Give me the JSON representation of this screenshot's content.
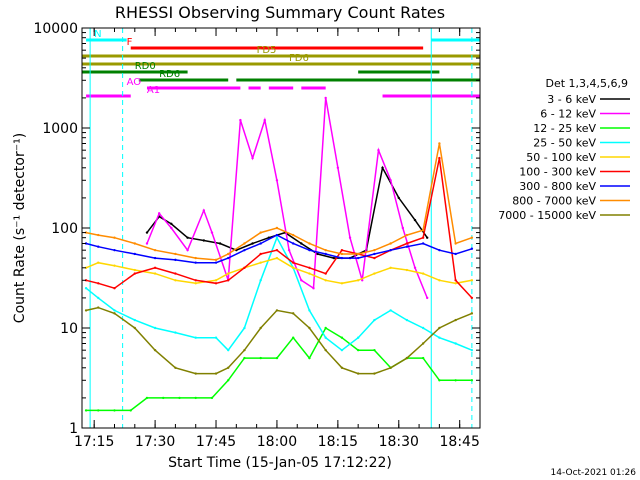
{
  "chart_data": {
    "type": "line",
    "title": "RHESSI Observing Summary Count Rates",
    "xlabel": "Start Time (15-Jan-05 17:12:22)",
    "ylabel": "Count Rate (s⁻¹ detector⁻¹)",
    "y_scale": "log",
    "ylim": [
      1,
      10000
    ],
    "xlim": [
      "17:12",
      "18:50"
    ],
    "x_ticks": [
      "17:15",
      "17:30",
      "17:45",
      "18:00",
      "18:15",
      "18:30",
      "18:45"
    ],
    "y_ticks": [
      "1",
      "10",
      "100",
      "1000",
      "10000"
    ],
    "footer": "14-Oct-2021 01:26",
    "legend": {
      "title": "Det 1,3,4,5,6,9",
      "placement": "right"
    },
    "series": [
      {
        "name": "3 - 6 keV",
        "color": "#000000",
        "x": [
          "17:28",
          "17:31",
          "17:34",
          "17:38",
          "17:42",
          "17:46",
          "17:50",
          "17:54",
          "17:58",
          "18:02",
          "18:06",
          "18:10",
          "18:14",
          "18:18",
          "18:22",
          "18:26",
          "18:30",
          "18:34",
          "18:37"
        ],
        "values": [
          90,
          130,
          110,
          80,
          75,
          70,
          60,
          70,
          80,
          90,
          70,
          55,
          50,
          50,
          60,
          400,
          200,
          120,
          80
        ]
      },
      {
        "name": "6 - 12 keV",
        "color": "#ff00ff",
        "x": [
          "17:28",
          "17:31",
          "17:34",
          "17:38",
          "17:42",
          "17:44",
          "17:48",
          "17:51",
          "17:54",
          "17:57",
          "18:00",
          "18:03",
          "18:06",
          "18:09",
          "18:12",
          "18:15",
          "18:18",
          "18:21",
          "18:25",
          "18:28",
          "18:31",
          "18:34",
          "18:37"
        ],
        "values": [
          70,
          140,
          100,
          60,
          150,
          90,
          30,
          1200,
          500,
          1200,
          300,
          60,
          30,
          25,
          2000,
          400,
          80,
          30,
          600,
          300,
          100,
          40,
          20
        ]
      },
      {
        "name": "12 - 25 keV",
        "color": "#00ff00",
        "x": [
          "17:13",
          "17:16",
          "17:20",
          "17:24",
          "17:28",
          "17:32",
          "17:36",
          "17:40",
          "17:44",
          "17:48",
          "17:52",
          "17:56",
          "18:00",
          "18:04",
          "18:08",
          "18:12",
          "18:16",
          "18:20",
          "18:24",
          "18:28",
          "18:32",
          "18:36",
          "18:40",
          "18:44",
          "18:48"
        ],
        "values": [
          1.5,
          1.5,
          1.5,
          1.5,
          2,
          2,
          2,
          2,
          2,
          3,
          5,
          5,
          5,
          8,
          5,
          10,
          8,
          6,
          6,
          4,
          5,
          5,
          3,
          3,
          3
        ]
      },
      {
        "name": "25 - 50 keV",
        "color": "#00ffff",
        "x": [
          "17:13",
          "17:16",
          "17:20",
          "17:25",
          "17:30",
          "17:35",
          "17:40",
          "17:45",
          "17:48",
          "17:52",
          "17:56",
          "18:00",
          "18:04",
          "18:08",
          "18:12",
          "18:16",
          "18:20",
          "18:24",
          "18:28",
          "18:32",
          "18:36",
          "18:40",
          "18:44",
          "18:48"
        ],
        "values": [
          25,
          20,
          15,
          12,
          10,
          9,
          8,
          8,
          6,
          10,
          30,
          80,
          40,
          15,
          8,
          6,
          8,
          12,
          15,
          12,
          10,
          8,
          7,
          6
        ]
      },
      {
        "name": "50 - 100 keV",
        "color": "#ffd700",
        "x": [
          "17:13",
          "17:16",
          "17:20",
          "17:25",
          "17:30",
          "17:35",
          "17:40",
          "17:45",
          "17:48",
          "17:52",
          "17:56",
          "18:00",
          "18:04",
          "18:08",
          "18:12",
          "18:16",
          "18:20",
          "18:24",
          "18:28",
          "18:32",
          "18:36",
          "18:40",
          "18:44",
          "18:48"
        ],
        "values": [
          40,
          45,
          42,
          38,
          35,
          30,
          28,
          30,
          35,
          40,
          45,
          50,
          40,
          35,
          30,
          28,
          30,
          35,
          40,
          38,
          35,
          30,
          28,
          30
        ]
      },
      {
        "name": "100 - 300 keV",
        "color": "#ff0000",
        "x": [
          "17:13",
          "17:16",
          "17:20",
          "17:25",
          "17:30",
          "17:35",
          "17:40",
          "17:45",
          "17:48",
          "17:52",
          "17:56",
          "18:00",
          "18:04",
          "18:08",
          "18:12",
          "18:16",
          "18:20",
          "18:24",
          "18:28",
          "18:32",
          "18:36",
          "18:40",
          "18:44",
          "18:48"
        ],
        "values": [
          30,
          28,
          25,
          35,
          40,
          35,
          30,
          28,
          30,
          40,
          55,
          60,
          45,
          40,
          35,
          60,
          55,
          50,
          60,
          70,
          80,
          500,
          30,
          20
        ]
      },
      {
        "name": "300 - 800 keV",
        "color": "#0000ff",
        "x": [
          "17:13",
          "17:16",
          "17:20",
          "17:25",
          "17:30",
          "17:35",
          "17:40",
          "17:45",
          "17:48",
          "17:52",
          "17:56",
          "18:00",
          "18:04",
          "18:08",
          "18:12",
          "18:16",
          "18:20",
          "18:24",
          "18:28",
          "18:32",
          "18:36",
          "18:40",
          "18:44",
          "18:48"
        ],
        "values": [
          70,
          65,
          60,
          55,
          50,
          48,
          45,
          45,
          50,
          60,
          70,
          85,
          70,
          60,
          55,
          50,
          50,
          55,
          60,
          65,
          70,
          60,
          55,
          62
        ]
      },
      {
        "name": "800 - 7000 keV",
        "color": "#ff8c00",
        "x": [
          "17:13",
          "17:16",
          "17:20",
          "17:25",
          "17:30",
          "17:35",
          "17:40",
          "17:45",
          "17:48",
          "17:52",
          "17:56",
          "18:00",
          "18:04",
          "18:08",
          "18:12",
          "18:16",
          "18:20",
          "18:24",
          "18:28",
          "18:32",
          "18:36",
          "18:40",
          "18:44",
          "18:48"
        ],
        "values": [
          90,
          85,
          80,
          70,
          60,
          55,
          50,
          48,
          55,
          70,
          90,
          100,
          85,
          70,
          60,
          55,
          55,
          60,
          70,
          85,
          95,
          700,
          70,
          80
        ]
      },
      {
        "name": "7000 - 15000 keV",
        "color": "#808000",
        "x": [
          "17:13",
          "17:16",
          "17:20",
          "17:25",
          "17:30",
          "17:35",
          "17:40",
          "17:45",
          "17:48",
          "17:52",
          "17:56",
          "18:00",
          "18:04",
          "18:08",
          "18:12",
          "18:16",
          "18:20",
          "18:24",
          "18:28",
          "18:32",
          "18:36",
          "18:40",
          "18:44",
          "18:48"
        ],
        "values": [
          15,
          16,
          14,
          10,
          6,
          4,
          3.5,
          3.5,
          4,
          6,
          10,
          15,
          14,
          10,
          6,
          4,
          3.5,
          3.5,
          4,
          5,
          7,
          10,
          12,
          14
        ]
      }
    ],
    "flags": [
      {
        "label": "N",
        "color": "#00ffff",
        "segments": [
          [
            "17:13",
            "17:23"
          ],
          [
            "18:38",
            "18:50"
          ]
        ]
      },
      {
        "label": "F",
        "color": "#ff0000",
        "segments": [
          [
            "17:24",
            "18:36"
          ]
        ]
      },
      {
        "label": "FD5",
        "color": "#999900",
        "segments": [
          [
            "17:12",
            "18:50"
          ]
        ]
      },
      {
        "label": "FD6",
        "color": "#999900",
        "segments": [
          [
            "17:12",
            "18:50"
          ]
        ]
      },
      {
        "label": "RD0",
        "color": "#008000",
        "segments": [
          [
            "17:12",
            "17:38"
          ],
          [
            "18:20",
            "18:40"
          ]
        ]
      },
      {
        "label": "RD6",
        "color": "#008000",
        "segments": [
          [
            "17:26",
            "17:48"
          ],
          [
            "17:50",
            "18:50"
          ]
        ]
      },
      {
        "label": "AO",
        "color": "#ff00ff",
        "segments": [
          [
            "17:28",
            "17:51"
          ],
          [
            "17:53",
            "17:56"
          ],
          [
            "17:58",
            "18:04"
          ],
          [
            "18:06",
            "18:12"
          ]
        ]
      },
      {
        "label": "A1",
        "color": "#ff00ff",
        "segments": [
          [
            "17:13",
            "17:24"
          ],
          [
            "18:26",
            "18:50"
          ]
        ]
      }
    ],
    "vlines": [
      {
        "x": "17:14",
        "color": "#00ffff",
        "style": "solid"
      },
      {
        "x": "17:22",
        "color": "#00ffff",
        "style": "dashed"
      },
      {
        "x": "18:38",
        "color": "#00ffff",
        "style": "solid"
      },
      {
        "x": "18:48",
        "color": "#00ffff",
        "style": "dashed"
      }
    ]
  }
}
